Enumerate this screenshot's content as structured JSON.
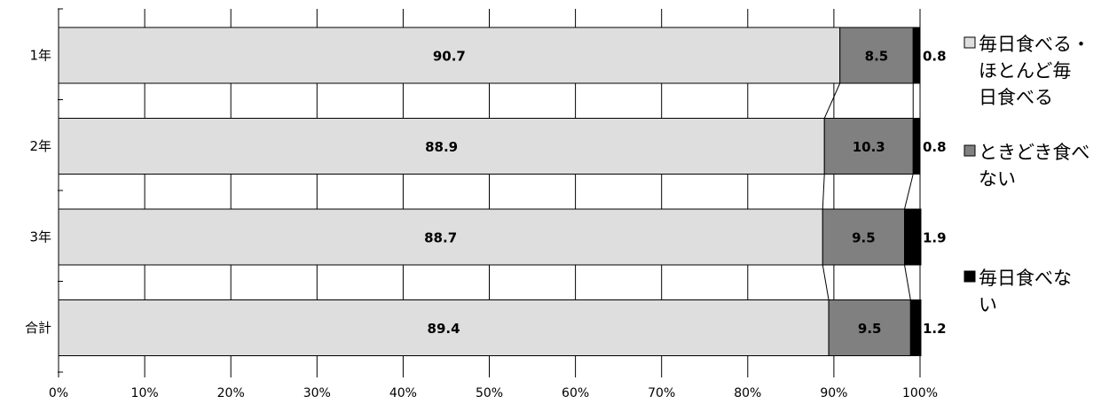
{
  "chart_data": {
    "type": "bar",
    "orientation": "horizontal",
    "stacked": "percent",
    "categories": [
      "1年",
      "2年",
      "3年",
      "合計"
    ],
    "series": [
      {
        "name": "毎日食べる・ほとんど毎日食べる",
        "legend_lines": [
          "毎日食べる・",
          "ほとんど毎",
          "日食べる"
        ],
        "color": "#dedede",
        "values": [
          90.7,
          88.9,
          88.7,
          89.4
        ]
      },
      {
        "name": "ときどき食べない",
        "legend_lines": [
          "ときどき食べ",
          "ない"
        ],
        "color": "#808080",
        "values": [
          8.5,
          10.3,
          9.5,
          9.5
        ]
      },
      {
        "name": "毎日食べない",
        "legend_lines": [
          "毎日食べな",
          "い"
        ],
        "color": "#000000",
        "values": [
          0.8,
          0.8,
          1.9,
          1.2
        ]
      }
    ],
    "x_ticks": [
      "0%",
      "10%",
      "20%",
      "30%",
      "40%",
      "50%",
      "60%",
      "70%",
      "80%",
      "90%",
      "100%"
    ],
    "xlim": [
      0,
      100
    ],
    "grid": "vertical",
    "series_lines": true,
    "legend_position": "right",
    "title": "",
    "xlabel": "",
    "ylabel": ""
  }
}
